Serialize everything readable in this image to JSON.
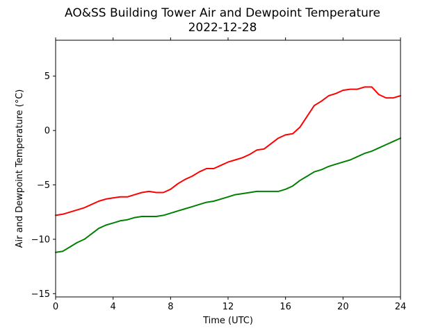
{
  "chart_data": {
    "type": "line",
    "title": "AO&SS Building Tower Air and Dewpoint Temperature",
    "subtitle": "2022-12-28",
    "xlabel": "Time (UTC)",
    "ylabel": "Air and Dewpoint Temperature (°C)",
    "xlim": [
      0,
      24
    ],
    "ylim": [
      -15.3,
      8.3
    ],
    "xticks": [
      0,
      4,
      8,
      12,
      16,
      20,
      24
    ],
    "yticks": [
      -15,
      -10,
      -5,
      0,
      5
    ],
    "grid": false,
    "legend": "none",
    "series": [
      {
        "color": "#ff0000",
        "x": [
          0,
          0.5,
          1,
          1.5,
          2,
          2.5,
          3,
          3.5,
          4,
          4.5,
          5,
          5.5,
          6,
          6.5,
          7,
          7.5,
          8,
          8.5,
          9,
          9.5,
          10,
          10.5,
          11,
          11.5,
          12,
          12.5,
          13,
          13.5,
          14,
          14.5,
          15,
          15.5,
          16,
          16.5,
          17,
          17.5,
          18,
          18.5,
          19,
          19.5,
          20,
          20.5,
          21,
          21.5,
          22,
          22.5,
          23,
          23.5,
          24
        ],
        "values": [
          -7.8,
          -7.7,
          -7.5,
          -7.3,
          -7.1,
          -6.8,
          -6.5,
          -6.3,
          -6.2,
          -6.1,
          -6.1,
          -5.9,
          -5.7,
          -5.6,
          -5.7,
          -5.7,
          -5.4,
          -4.9,
          -4.5,
          -4.2,
          -3.8,
          -3.5,
          -3.5,
          -3.2,
          -2.9,
          -2.7,
          -2.5,
          -2.2,
          -1.8,
          -1.7,
          -1.2,
          -0.7,
          -0.4,
          -0.3,
          0.3,
          1.3,
          2.3,
          2.7,
          3.2,
          3.4,
          3.7,
          3.8,
          3.8,
          4.0,
          4.0,
          3.3,
          3.0,
          3.0,
          3.2
        ]
      },
      {
        "color": "#008000",
        "x": [
          0,
          0.5,
          1,
          1.5,
          2,
          2.5,
          3,
          3.5,
          4,
          4.5,
          5,
          5.5,
          6,
          6.5,
          7,
          7.5,
          8,
          8.5,
          9,
          9.5,
          10,
          10.5,
          11,
          11.5,
          12,
          12.5,
          13,
          13.5,
          14,
          14.5,
          15,
          15.5,
          16,
          16.5,
          17,
          17.5,
          18,
          18.5,
          19,
          19.5,
          20,
          20.5,
          21,
          21.5,
          22,
          22.5,
          23,
          23.5,
          24
        ],
        "values": [
          -11.2,
          -11.1,
          -10.7,
          -10.3,
          -10.0,
          -9.5,
          -9.0,
          -8.7,
          -8.5,
          -8.3,
          -8.2,
          -8.0,
          -7.9,
          -7.9,
          -7.9,
          -7.8,
          -7.6,
          -7.4,
          -7.2,
          -7.0,
          -6.8,
          -6.6,
          -6.5,
          -6.3,
          -6.1,
          -5.9,
          -5.8,
          -5.7,
          -5.6,
          -5.6,
          -5.6,
          -5.6,
          -5.4,
          -5.1,
          -4.6,
          -4.2,
          -3.8,
          -3.6,
          -3.3,
          -3.1,
          -2.9,
          -2.7,
          -2.4,
          -2.1,
          -1.9,
          -1.6,
          -1.3,
          -1.0,
          -0.7
        ]
      }
    ]
  }
}
